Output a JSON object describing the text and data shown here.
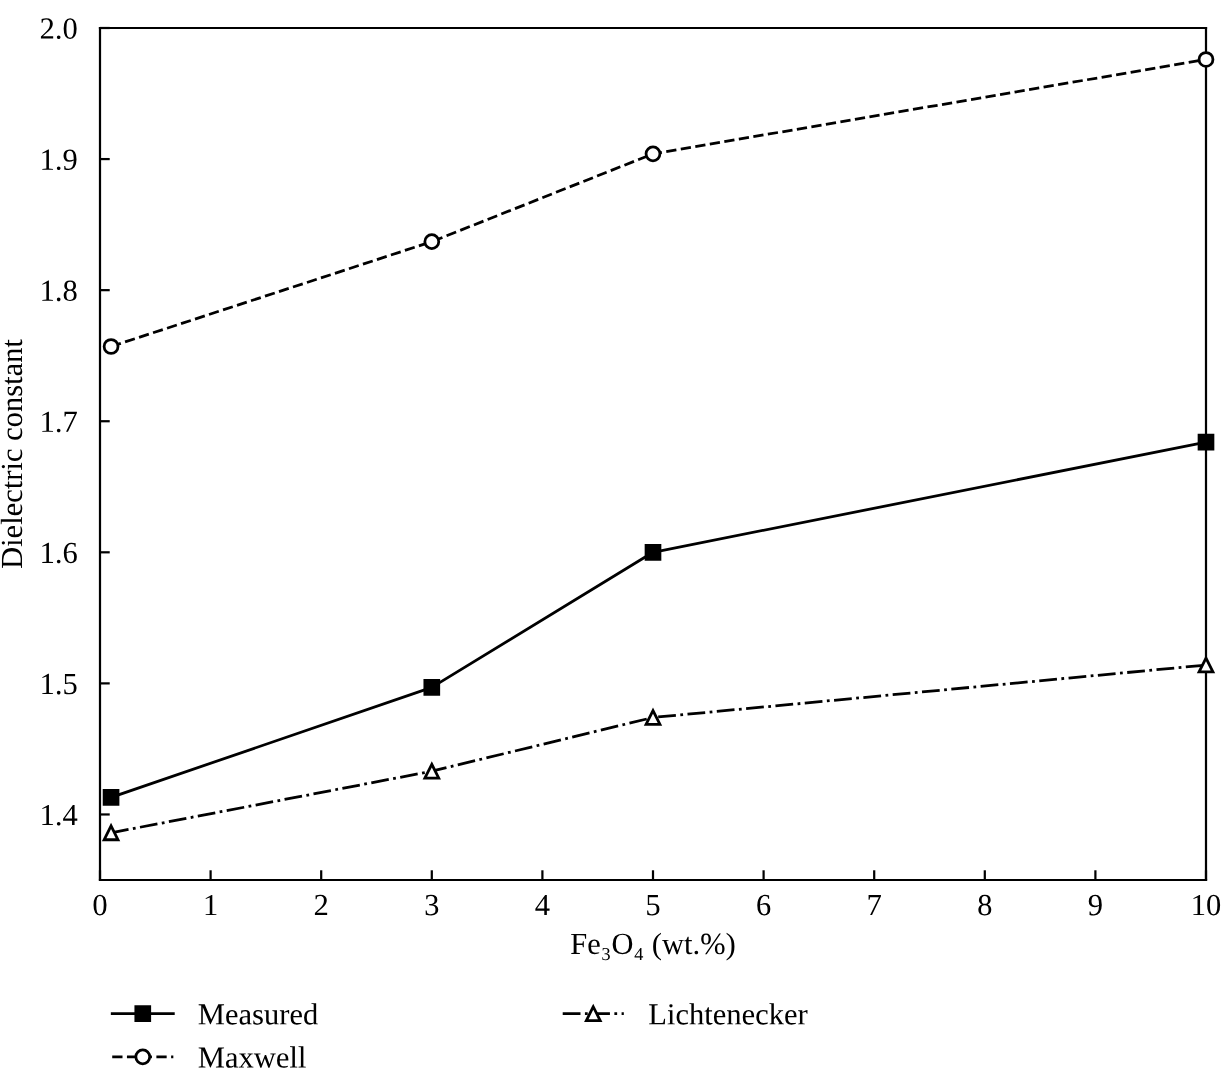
{
  "chart_data": {
    "type": "line",
    "xlabel": "Fe₃O₄ (wt.%)",
    "ylabel": "Dielectric constant",
    "xlim": [
      0,
      10
    ],
    "xticks": [
      0,
      1,
      2,
      3,
      4,
      5,
      6,
      7,
      8,
      9,
      10
    ],
    "ylim": [
      1.35,
      2.0
    ],
    "yticks": [
      1.4,
      1.5,
      1.6,
      1.7,
      1.8,
      1.9,
      {
        "value": 2.0,
        "label": "2.0"
      }
    ],
    "grid": false,
    "legend": "bottom",
    "series": [
      {
        "name": "Measured",
        "color": "#000000",
        "x": [
          0.1,
          3,
          5,
          10
        ],
        "values": [
          1.413,
          1.497,
          1.6,
          1.684
        ],
        "marker": "square",
        "line_style": "solid"
      },
      {
        "name": "Maxwell",
        "color": "#000000",
        "x": [
          0.1,
          3,
          5,
          10
        ],
        "values": [
          1.757,
          1.837,
          1.904,
          1.976
        ],
        "marker": "circle",
        "line_style": "dashed"
      },
      {
        "name": "Lichtenecker",
        "color": "#000000",
        "x": [
          0.1,
          3,
          5,
          10
        ],
        "values": [
          1.386,
          1.433,
          1.474,
          1.514
        ],
        "marker": "triangle",
        "line_style": "dashdot"
      }
    ]
  }
}
